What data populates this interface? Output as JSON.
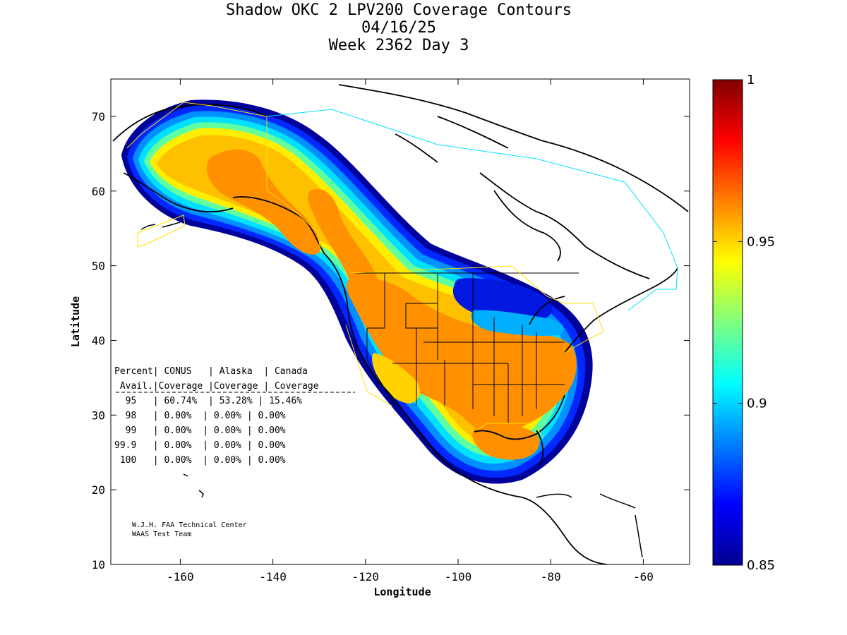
{
  "title": {
    "line1": "Shadow OKC 2 LPV200 Coverage Contours",
    "line2": "04/16/25",
    "line3": "Week 2362 Day 3"
  },
  "axes": {
    "xlabel": "Longitude",
    "ylabel": "Latitude",
    "xlim": [
      -175,
      -50
    ],
    "ylim": [
      10,
      75
    ],
    "xticks": [
      -160,
      -140,
      -120,
      -100,
      -80,
      -60
    ],
    "yticks": [
      10,
      20,
      30,
      40,
      50,
      60,
      70
    ]
  },
  "colorbar": {
    "min": 0.85,
    "max": 1,
    "ticks": [
      {
        "value": 0.85,
        "label": "0.85"
      },
      {
        "value": 0.9,
        "label": "0.9"
      },
      {
        "value": 0.95,
        "label": "0.95"
      },
      {
        "value": 1,
        "label": "1"
      }
    ],
    "colormap": "jet"
  },
  "table": {
    "header1": "Percent| CONUS   | Alaska  | Canada",
    "header2": " Avail.|Coverage |Coverage | Coverage",
    "rows": [
      "  95   | 60.74%  | 53.28% | 15.46%",
      "  98   | 0.00%  | 0.00% | 0.00%",
      "  99   | 0.00%  | 0.00% | 0.00%",
      "99.9   | 0.00%  | 0.00% | 0.00%",
      " 100   | 0.00%  | 0.00% | 0.00%"
    ]
  },
  "credit": {
    "line1": "W.J.H. FAA Technical Center",
    "line2": "WAAS Test Team"
  },
  "chart_data": {
    "type": "heatmap",
    "title": "Shadow OKC 2 LPV200 Coverage Contours",
    "xlabel": "Longitude",
    "ylabel": "Latitude",
    "xlim": [
      -175,
      -50
    ],
    "ylim": [
      10,
      75
    ],
    "value_range": [
      0.85,
      1
    ],
    "coverage_summary": [
      {
        "percent_avail": 95,
        "conus": 60.74,
        "alaska": 53.28,
        "canada": 15.46
      },
      {
        "percent_avail": 98,
        "conus": 0.0,
        "alaska": 0.0,
        "canada": 0.0
      },
      {
        "percent_avail": 99,
        "conus": 0.0,
        "alaska": 0.0,
        "canada": 0.0
      },
      {
        "percent_avail": 99.9,
        "conus": 0.0,
        "alaska": 0.0,
        "canada": 0.0
      },
      {
        "percent_avail": 100,
        "conus": 0.0,
        "alaska": 0.0,
        "canada": 0.0
      }
    ]
  }
}
